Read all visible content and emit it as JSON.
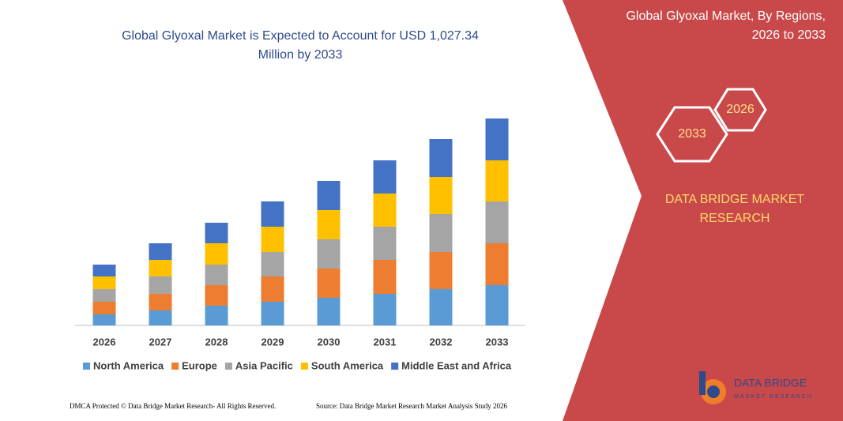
{
  "chart_data": {
    "type": "bar",
    "stacked": true,
    "title": [
      "Global Glyoxal Market is Expected to Account for USD 1,027.34",
      "Million by 2033"
    ],
    "categories": [
      "2026",
      "2027",
      "2028",
      "2029",
      "2030",
      "2031",
      "2032",
      "2033"
    ],
    "series": [
      {
        "name": "North America",
        "color": "#5b9bd5",
        "values": [
          14,
          19,
          25,
          30,
          35,
          40,
          46,
          51
        ]
      },
      {
        "name": "Europe",
        "color": "#ed7d31",
        "values": [
          16,
          21,
          26,
          32,
          37,
          43,
          47,
          53
        ]
      },
      {
        "name": "Asia Pacific",
        "color": "#a5a5a5",
        "values": [
          16,
          22,
          26,
          31,
          37,
          42,
          48,
          53
        ]
      },
      {
        "name": "South America",
        "color": "#ffc000",
        "values": [
          16,
          21,
          27,
          32,
          37,
          42,
          47,
          52
        ]
      },
      {
        "name": "Middle East and Africa",
        "color": "#4472c4",
        "values": [
          15,
          21,
          26,
          32,
          37,
          42,
          48,
          53
        ]
      }
    ]
  },
  "panel": {
    "title": [
      "Global Glyoxal Market, By Regions,",
      "2026 to 2033"
    ],
    "hexagons": [
      "2026",
      "2033"
    ],
    "brand": [
      "DATA BRIDGE MARKET",
      "RESEARCH"
    ],
    "logo": "DATA BRIDGE",
    "logo_subtitle": "MARKET RESEARCH"
  },
  "footer": {
    "left": "DMCA Protected © Data Bridge Market Research- All Rights Reserved.",
    "right": "Source: Data Bridge Market Research Market Analysis Study 2026"
  }
}
